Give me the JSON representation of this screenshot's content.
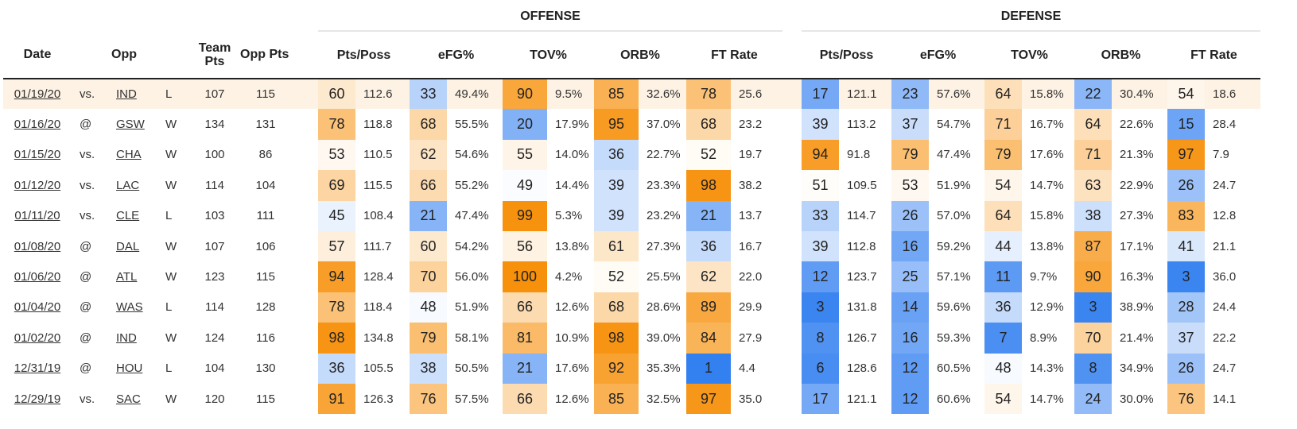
{
  "groups": {
    "offense": "OFFENSE",
    "defense": "DEFENSE"
  },
  "columns": {
    "date": "Date",
    "opp": "Opp",
    "team_pts": "Team Pts",
    "opp_pts": "Opp Pts",
    "stats": [
      "Pts/Poss",
      "eFG%",
      "TOV%",
      "ORB%",
      "FT Rate"
    ]
  },
  "colors": {
    "highlight_row": "#fdf2e4",
    "scale_low": "#2f7df0",
    "scale_mid": "#ffffff",
    "scale_high": "#f7900a"
  },
  "rows": [
    {
      "date": "01/19/20",
      "ha": "vs.",
      "opp": "IND",
      "res": "L",
      "tp": "107",
      "op": "115",
      "off": [
        [
          "60",
          "112.6"
        ],
        [
          "33",
          "49.4%"
        ],
        [
          "90",
          "9.5%"
        ],
        [
          "85",
          "32.6%"
        ],
        [
          "78",
          "25.6"
        ]
      ],
      "def": [
        [
          "17",
          "121.1"
        ],
        [
          "23",
          "57.6%"
        ],
        [
          "64",
          "15.8%"
        ],
        [
          "22",
          "30.4%"
        ],
        [
          "54",
          "18.6"
        ]
      ]
    },
    {
      "date": "01/16/20",
      "ha": "@",
      "opp": "GSW",
      "res": "W",
      "tp": "134",
      "op": "131",
      "off": [
        [
          "78",
          "118.8"
        ],
        [
          "68",
          "55.5%"
        ],
        [
          "20",
          "17.9%"
        ],
        [
          "95",
          "37.0%"
        ],
        [
          "68",
          "23.2"
        ]
      ],
      "def": [
        [
          "39",
          "113.2"
        ],
        [
          "37",
          "54.7%"
        ],
        [
          "71",
          "16.7%"
        ],
        [
          "64",
          "22.6%"
        ],
        [
          "15",
          "28.4"
        ]
      ]
    },
    {
      "date": "01/15/20",
      "ha": "vs.",
      "opp": "CHA",
      "res": "W",
      "tp": "100",
      "op": "86",
      "off": [
        [
          "53",
          "110.5"
        ],
        [
          "62",
          "54.6%"
        ],
        [
          "55",
          "14.0%"
        ],
        [
          "36",
          "22.7%"
        ],
        [
          "52",
          "19.7"
        ]
      ],
      "def": [
        [
          "94",
          "91.8"
        ],
        [
          "79",
          "47.4%"
        ],
        [
          "79",
          "17.6%"
        ],
        [
          "71",
          "21.3%"
        ],
        [
          "97",
          "7.9"
        ]
      ]
    },
    {
      "date": "01/12/20",
      "ha": "vs.",
      "opp": "LAC",
      "res": "W",
      "tp": "114",
      "op": "104",
      "off": [
        [
          "69",
          "115.5"
        ],
        [
          "66",
          "55.2%"
        ],
        [
          "49",
          "14.4%"
        ],
        [
          "39",
          "23.3%"
        ],
        [
          "98",
          "38.2"
        ]
      ],
      "def": [
        [
          "51",
          "109.5"
        ],
        [
          "53",
          "51.9%"
        ],
        [
          "54",
          "14.7%"
        ],
        [
          "63",
          "22.9%"
        ],
        [
          "26",
          "24.7"
        ]
      ]
    },
    {
      "date": "01/11/20",
      "ha": "vs.",
      "opp": "CLE",
      "res": "L",
      "tp": "103",
      "op": "111",
      "off": [
        [
          "45",
          "108.4"
        ],
        [
          "21",
          "47.4%"
        ],
        [
          "99",
          "5.3%"
        ],
        [
          "39",
          "23.2%"
        ],
        [
          "21",
          "13.7"
        ]
      ],
      "def": [
        [
          "33",
          "114.7"
        ],
        [
          "26",
          "57.0%"
        ],
        [
          "64",
          "15.8%"
        ],
        [
          "38",
          "27.3%"
        ],
        [
          "83",
          "12.8"
        ]
      ]
    },
    {
      "date": "01/08/20",
      "ha": "@",
      "opp": "DAL",
      "res": "W",
      "tp": "107",
      "op": "106",
      "off": [
        [
          "57",
          "111.7"
        ],
        [
          "60",
          "54.2%"
        ],
        [
          "56",
          "13.8%"
        ],
        [
          "61",
          "27.3%"
        ],
        [
          "36",
          "16.7"
        ]
      ],
      "def": [
        [
          "39",
          "112.8"
        ],
        [
          "16",
          "59.2%"
        ],
        [
          "44",
          "13.8%"
        ],
        [
          "87",
          "17.1%"
        ],
        [
          "41",
          "21.1"
        ]
      ]
    },
    {
      "date": "01/06/20",
      "ha": "@",
      "opp": "ATL",
      "res": "W",
      "tp": "123",
      "op": "115",
      "off": [
        [
          "94",
          "128.4"
        ],
        [
          "70",
          "56.0%"
        ],
        [
          "100",
          "4.2%"
        ],
        [
          "52",
          "25.5%"
        ],
        [
          "62",
          "22.0"
        ]
      ],
      "def": [
        [
          "12",
          "123.7"
        ],
        [
          "25",
          "57.1%"
        ],
        [
          "11",
          "9.7%"
        ],
        [
          "90",
          "16.3%"
        ],
        [
          "3",
          "36.0"
        ]
      ]
    },
    {
      "date": "01/04/20",
      "ha": "@",
      "opp": "WAS",
      "res": "L",
      "tp": "114",
      "op": "128",
      "off": [
        [
          "78",
          "118.4"
        ],
        [
          "48",
          "51.9%"
        ],
        [
          "66",
          "12.6%"
        ],
        [
          "68",
          "28.6%"
        ],
        [
          "89",
          "29.9"
        ]
      ],
      "def": [
        [
          "3",
          "131.8"
        ],
        [
          "14",
          "59.6%"
        ],
        [
          "36",
          "12.9%"
        ],
        [
          "3",
          "38.9%"
        ],
        [
          "28",
          "24.4"
        ]
      ]
    },
    {
      "date": "01/02/20",
      "ha": "@",
      "opp": "IND",
      "res": "W",
      "tp": "124",
      "op": "116",
      "off": [
        [
          "98",
          "134.8"
        ],
        [
          "79",
          "58.1%"
        ],
        [
          "81",
          "10.9%"
        ],
        [
          "98",
          "39.0%"
        ],
        [
          "84",
          "27.9"
        ]
      ],
      "def": [
        [
          "8",
          "126.7"
        ],
        [
          "16",
          "59.3%"
        ],
        [
          "7",
          "8.9%"
        ],
        [
          "70",
          "21.4%"
        ],
        [
          "37",
          "22.2"
        ]
      ]
    },
    {
      "date": "12/31/19",
      "ha": "@",
      "opp": "HOU",
      "res": "L",
      "tp": "104",
      "op": "130",
      "off": [
        [
          "36",
          "105.5"
        ],
        [
          "38",
          "50.5%"
        ],
        [
          "21",
          "17.6%"
        ],
        [
          "92",
          "35.3%"
        ],
        [
          "1",
          "4.4"
        ]
      ],
      "def": [
        [
          "6",
          "128.6"
        ],
        [
          "12",
          "60.5%"
        ],
        [
          "48",
          "14.3%"
        ],
        [
          "8",
          "34.9%"
        ],
        [
          "26",
          "24.7"
        ]
      ]
    },
    {
      "date": "12/29/19",
      "ha": "vs.",
      "opp": "SAC",
      "res": "W",
      "tp": "120",
      "op": "115",
      "off": [
        [
          "91",
          "126.3"
        ],
        [
          "76",
          "57.5%"
        ],
        [
          "66",
          "12.6%"
        ],
        [
          "85",
          "32.5%"
        ],
        [
          "97",
          "35.0"
        ]
      ],
      "def": [
        [
          "17",
          "121.1"
        ],
        [
          "12",
          "60.6%"
        ],
        [
          "54",
          "14.7%"
        ],
        [
          "24",
          "30.0%"
        ],
        [
          "76",
          "14.1"
        ]
      ]
    }
  ]
}
